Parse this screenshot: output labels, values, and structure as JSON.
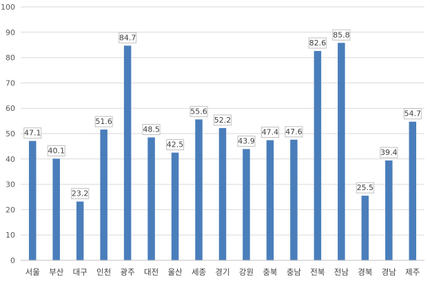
{
  "chart_data": {
    "type": "bar",
    "categories": [
      "서울",
      "부산",
      "대구",
      "인천",
      "광주",
      "대전",
      "울산",
      "세종",
      "경기",
      "강원",
      "충북",
      "충남",
      "전북",
      "전남",
      "경북",
      "경남",
      "제주"
    ],
    "values": [
      47.1,
      40.1,
      23.2,
      51.6,
      84.7,
      48.5,
      42.5,
      55.6,
      52.2,
      43.9,
      47.4,
      47.6,
      82.6,
      85.8,
      25.5,
      39.4,
      54.7
    ],
    "data_labels": [
      "47.1",
      "40.1",
      "23.2",
      "51.6",
      "84.7",
      "48.5",
      "42.5",
      "55.6",
      "52.2",
      "43.9",
      "47.4",
      "47.6",
      "82.6",
      "85.8",
      "25.5",
      "39.4",
      "54.7"
    ],
    "y_ticks": [
      "0",
      "10",
      "20",
      "30",
      "40",
      "50",
      "60",
      "70",
      "80",
      "90",
      "100"
    ],
    "ylim": [
      0,
      100
    ],
    "title": "",
    "xlabel": "",
    "ylabel": "",
    "grid": true,
    "legend": "none",
    "bar_color": "#4a7ebb"
  }
}
